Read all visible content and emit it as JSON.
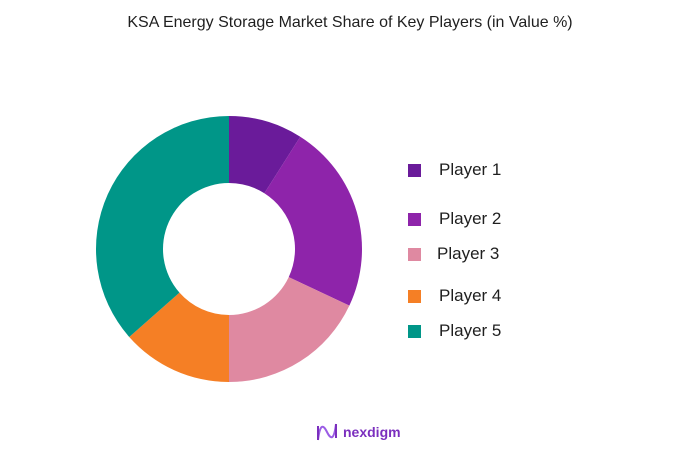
{
  "chart_data": {
    "type": "pie",
    "variant": "donut",
    "title": "KSA Energy Storage  Market Share of Key Players (in Value %)",
    "categories": [
      "Player 1",
      "Player 2",
      "Player 3",
      "Player 4",
      "Player 5"
    ],
    "values": [
      9,
      23,
      18,
      13.5,
      36.5
    ],
    "colors": [
      "#6a1b9a",
      "#8e24aa",
      "#df89a1",
      "#f57f25",
      "#009688"
    ],
    "legend_position": "right",
    "start_angle": "top, clockwise"
  },
  "legend": {
    "items": [
      {
        "label": "Player 1",
        "color": "#6a1b9a"
      },
      {
        "label": "Player 2",
        "color": "#8e24aa"
      },
      {
        "label": "Player 3",
        "color": "#df89a1"
      },
      {
        "label": "Player 4",
        "color": "#f57f25"
      },
      {
        "label": "Player 5",
        "color": "#009688"
      }
    ]
  },
  "branding": {
    "logo_text": "nexdigm",
    "logo_color": "#7b2fbe"
  }
}
